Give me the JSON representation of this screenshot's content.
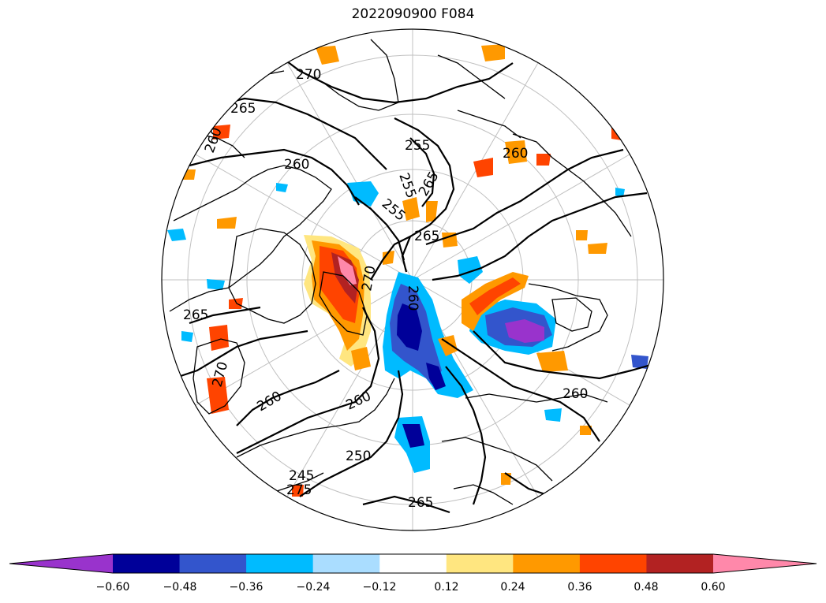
{
  "title": "2022090900 F084",
  "colorbar": {
    "colors": [
      "#9933cc",
      "#000099",
      "#3355cc",
      "#00bbff",
      "#aaddff",
      "#ffffff",
      "#ffe680",
      "#ff9900",
      "#ff4400",
      "#b22222",
      "#ff88aa"
    ],
    "ticks": [
      "−0.60",
      "−0.48",
      "−0.36",
      "−0.24",
      "−0.12",
      "0.12",
      "0.24",
      "0.36",
      "0.48",
      "0.60"
    ]
  },
  "contour_labels": [
    "270",
    "265",
    "260",
    "260",
    "255",
    "255",
    "255",
    "265",
    "265",
    "260",
    "260",
    "270",
    "265",
    "270",
    "260",
    "260",
    "250",
    "245",
    "275",
    "265",
    "260"
  ],
  "map": {
    "projection": "north-polar-stereographic",
    "field_colors": {
      "coast": "#000000",
      "contour": "#000000",
      "grid": "#bbbbbb"
    }
  }
}
